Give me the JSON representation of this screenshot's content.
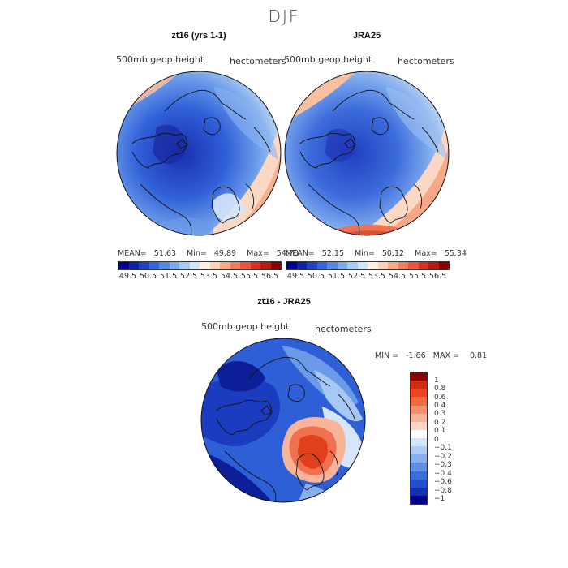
{
  "title": "DJF",
  "panels": [
    {
      "title": "zt16 (yrs 1-1)",
      "left_label": "500mb geop height",
      "right_label": "hectometers",
      "stats": {
        "mean": "51.63",
        "min": "49.89",
        "max": "54.70"
      }
    },
    {
      "title": "JRA25",
      "left_label": "500mb geop height",
      "right_label": "hectometers",
      "stats": {
        "mean": "52.15",
        "min": "50.12",
        "max": "55.34"
      }
    },
    {
      "title": "zt16 - JRA25",
      "left_label": "500mb geop height",
      "right_label": "hectometers",
      "stats": {
        "min": "-1.86",
        "max": "0.81"
      }
    }
  ],
  "stat_labels": {
    "mean": "MEAN=",
    "min": "Min=",
    "max": "Max=",
    "min_upper": "MIN =",
    "max_upper": "MAX ="
  },
  "colorbar_top": {
    "colors": [
      "#00008b",
      "#1020a8",
      "#2040c8",
      "#3366dd",
      "#5588e6",
      "#80aaee",
      "#a8c8f4",
      "#d0e4fa",
      "#fff0e6",
      "#fcd0b8",
      "#f8a888",
      "#f08060",
      "#e85838",
      "#d83020",
      "#b81810",
      "#8b0000"
    ],
    "labels": [
      "49.5",
      "50.5",
      "51.5",
      "52.5",
      "53.5",
      "54.5",
      "55.5",
      "56.5"
    ]
  },
  "colorbar_diff": {
    "colors": [
      "#8b0000",
      "#d42a10",
      "#ee4420",
      "#f06a40",
      "#f59070",
      "#f8b498",
      "#fbd6c4",
      "#ffffff",
      "#d6e6fa",
      "#b0ccf4",
      "#88aeee",
      "#5e8ee6",
      "#3a6edc",
      "#2050d0",
      "#1030b0",
      "#00008b"
    ],
    "labels": [
      "1",
      "0.8",
      "0.6",
      "0.4",
      "0.3",
      "0.2",
      "0.1",
      "0",
      "−0.1",
      "−0.2",
      "−0.3",
      "−0.4",
      "−0.6",
      "−0.8",
      "−1"
    ]
  }
}
